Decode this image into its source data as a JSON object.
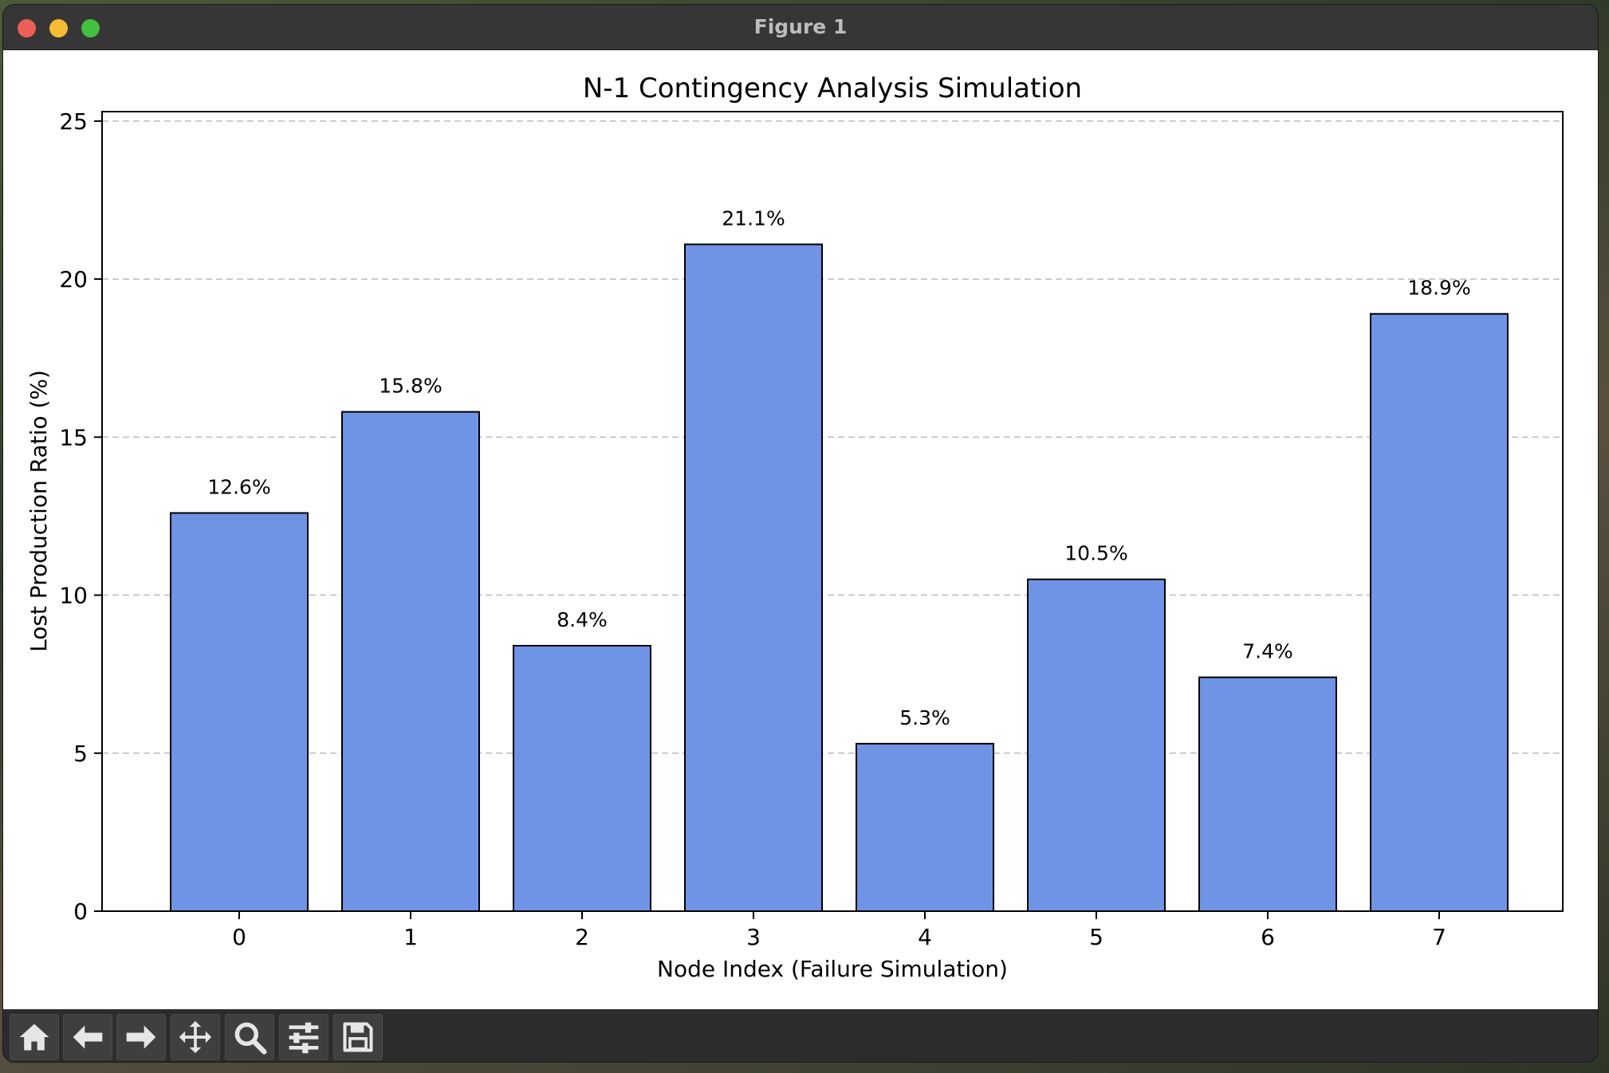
{
  "window": {
    "title": "Figure 1"
  },
  "colors": {
    "bar_fill": "#6f93e5",
    "bar_edge": "#000000",
    "grid": "#bbbbbb"
  },
  "toolbar": {
    "items": [
      {
        "name": "home",
        "icon": "home-icon"
      },
      {
        "name": "back",
        "icon": "arrow-left-icon"
      },
      {
        "name": "forward",
        "icon": "arrow-right-icon"
      },
      {
        "name": "pan",
        "icon": "move-icon"
      },
      {
        "name": "zoom",
        "icon": "magnifier-icon"
      },
      {
        "name": "configure",
        "icon": "sliders-icon"
      },
      {
        "name": "save",
        "icon": "floppy-disk-icon"
      }
    ]
  },
  "chart_data": {
    "type": "bar",
    "title": "N-1 Contingency Analysis Simulation",
    "xlabel": "Node Index (Failure Simulation)",
    "ylabel": "Lost Production Ratio (%)",
    "categories": [
      "0",
      "1",
      "2",
      "3",
      "4",
      "5",
      "6",
      "7"
    ],
    "values": [
      12.6,
      15.8,
      8.4,
      21.1,
      5.3,
      10.5,
      7.4,
      18.9
    ],
    "value_labels": [
      "12.6%",
      "15.8%",
      "8.4%",
      "21.1%",
      "5.3%",
      "10.5%",
      "7.4%",
      "18.9%"
    ],
    "ylim": [
      0,
      25.3
    ],
    "yticks": [
      0,
      5,
      10,
      15,
      20,
      25
    ],
    "ytick_labels": [
      "0",
      "5",
      "10",
      "15",
      "20",
      "25"
    ],
    "grid": "y-dashed"
  }
}
